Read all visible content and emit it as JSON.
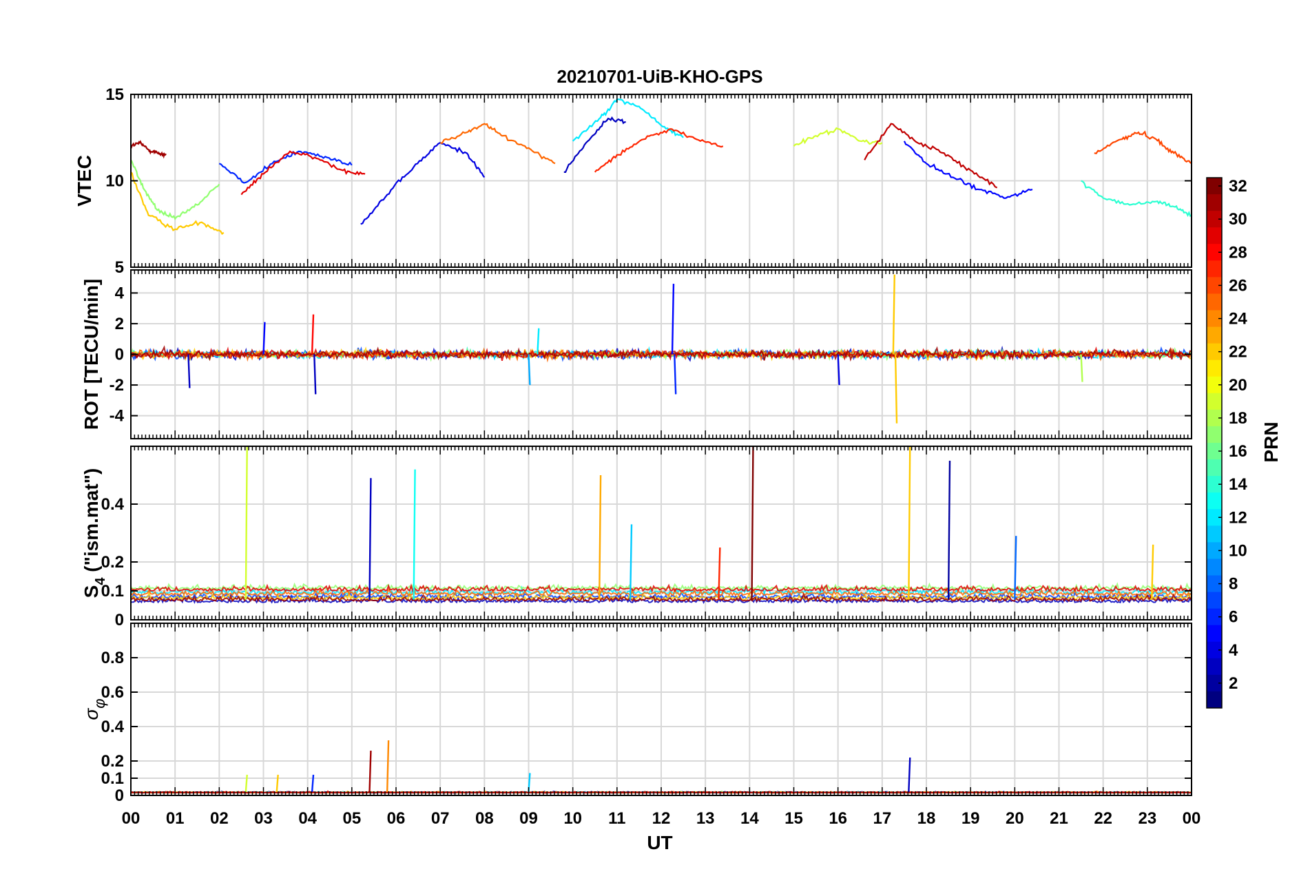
{
  "figure": {
    "title": "20210701-UiB-KHO-GPS",
    "xlabel": "UT",
    "x_tick_labels": [
      "00",
      "01",
      "02",
      "03",
      "04",
      "05",
      "06",
      "07",
      "08",
      "09",
      "10",
      "11",
      "12",
      "13",
      "14",
      "15",
      "16",
      "17",
      "18",
      "19",
      "20",
      "21",
      "22",
      "23",
      "00"
    ]
  },
  "colorbar": {
    "label": "PRN",
    "colormap": "jet",
    "range": [
      1,
      32
    ],
    "tick_labels": [
      "2",
      "4",
      "6",
      "8",
      "10",
      "12",
      "14",
      "16",
      "18",
      "20",
      "22",
      "24",
      "26",
      "28",
      "30",
      "32"
    ]
  },
  "chart_data": [
    {
      "type": "line",
      "panel": "vtec",
      "ylabel": "VTEC",
      "xlim": [
        0,
        24
      ],
      "ylim": [
        5,
        15
      ],
      "y_tick_labels": [
        "5",
        "10",
        "15"
      ],
      "grid": true,
      "series": [
        {
          "prn": 31,
          "points": [
            [
              0.0,
              12.0
            ],
            [
              0.2,
              12.2
            ],
            [
              0.4,
              11.8
            ],
            [
              0.6,
              11.6
            ],
            [
              0.8,
              11.5
            ]
          ]
        },
        {
          "prn": 17,
          "points": [
            [
              0.0,
              11.2
            ],
            [
              0.3,
              9.5
            ],
            [
              0.6,
              8.3
            ],
            [
              1.0,
              7.8
            ],
            [
              1.5,
              8.6
            ],
            [
              2.0,
              9.8
            ]
          ]
        },
        {
          "prn": 22,
          "points": [
            [
              0.0,
              10.5
            ],
            [
              0.4,
              8.0
            ],
            [
              1.0,
              7.2
            ],
            [
              1.6,
              7.6
            ],
            [
              2.1,
              7.0
            ]
          ]
        },
        {
          "prn": 6,
          "points": [
            [
              2.0,
              11.0
            ],
            [
              2.6,
              9.9
            ],
            [
              3.2,
              11.0
            ],
            [
              3.8,
              11.7
            ],
            [
              4.4,
              11.4
            ],
            [
              5.0,
              10.9
            ]
          ]
        },
        {
          "prn": 29,
          "points": [
            [
              2.5,
              9.2
            ],
            [
              3.0,
              10.4
            ],
            [
              3.6,
              11.7
            ],
            [
              4.2,
              11.3
            ],
            [
              4.8,
              10.6
            ],
            [
              5.3,
              10.4
            ]
          ]
        },
        {
          "prn": 4,
          "points": [
            [
              5.2,
              7.5
            ],
            [
              5.8,
              9.2
            ],
            [
              6.4,
              10.8
            ],
            [
              7.0,
              12.2
            ],
            [
              7.6,
              11.6
            ],
            [
              8.0,
              10.2
            ]
          ]
        },
        {
          "prn": 25,
          "points": [
            [
              7.0,
              12.2
            ],
            [
              7.6,
              12.8
            ],
            [
              8.0,
              13.3
            ],
            [
              8.4,
              12.6
            ],
            [
              9.0,
              11.9
            ],
            [
              9.6,
              11.0
            ]
          ]
        },
        {
          "prn": 12,
          "points": [
            [
              10.0,
              12.3
            ],
            [
              10.6,
              13.6
            ],
            [
              11.0,
              14.7
            ],
            [
              11.5,
              14.3
            ],
            [
              12.0,
              13.2
            ],
            [
              12.5,
              12.5
            ]
          ]
        },
        {
          "prn": 3,
          "points": [
            [
              9.8,
              10.5
            ],
            [
              10.3,
              12.2
            ],
            [
              10.8,
              13.6
            ],
            [
              11.2,
              13.4
            ]
          ]
        },
        {
          "prn": 27,
          "points": [
            [
              10.5,
              10.5
            ],
            [
              11.0,
              11.5
            ],
            [
              11.6,
              12.4
            ],
            [
              12.2,
              13.0
            ],
            [
              12.8,
              12.4
            ],
            [
              13.4,
              12.0
            ]
          ]
        },
        {
          "prn": 19,
          "points": [
            [
              15.0,
              12.0
            ],
            [
              15.5,
              12.6
            ],
            [
              16.0,
              13.0
            ],
            [
              16.5,
              12.3
            ],
            [
              17.0,
              12.2
            ]
          ]
        },
        {
          "prn": 30,
          "points": [
            [
              16.6,
              11.2
            ],
            [
              17.2,
              13.3
            ],
            [
              17.8,
              12.2
            ],
            [
              18.4,
              11.6
            ],
            [
              19.0,
              10.6
            ],
            [
              19.6,
              9.6
            ]
          ]
        },
        {
          "prn": 5,
          "points": [
            [
              17.5,
              12.3
            ],
            [
              18.0,
              11.0
            ],
            [
              18.6,
              10.2
            ],
            [
              19.2,
              9.5
            ],
            [
              19.8,
              9.0
            ],
            [
              20.4,
              9.5
            ]
          ]
        },
        {
          "prn": 26,
          "points": [
            [
              21.8,
              11.6
            ],
            [
              22.4,
              12.4
            ],
            [
              22.8,
              12.8
            ],
            [
              23.2,
              12.4
            ],
            [
              23.6,
              11.6
            ],
            [
              24.0,
              11.0
            ]
          ]
        },
        {
          "prn": 14,
          "points": [
            [
              21.5,
              10.0
            ],
            [
              22.0,
              9.0
            ],
            [
              22.6,
              8.6
            ],
            [
              23.2,
              8.8
            ],
            [
              23.6,
              8.5
            ],
            [
              24.0,
              8.0
            ]
          ]
        }
      ]
    },
    {
      "type": "line",
      "panel": "rot",
      "ylabel": "ROT [TECU/min]",
      "xlim": [
        0,
        24
      ],
      "ylim": [
        -5.5,
        5.5
      ],
      "y_tick_labels": [
        "-4",
        "-2",
        "0",
        "2",
        "4"
      ],
      "grid": true,
      "spikes": [
        {
          "prn": 28,
          "x": 4.1,
          "y": 2.6
        },
        {
          "prn": 3,
          "x": 4.15,
          "y": -2.6
        },
        {
          "prn": 5,
          "x": 12.25,
          "y": 4.6
        },
        {
          "prn": 6,
          "x": 12.3,
          "y": -2.6
        },
        {
          "prn": 22,
          "x": 17.25,
          "y": 5.2
        },
        {
          "prn": 22,
          "x": 17.3,
          "y": -4.5
        },
        {
          "prn": 4,
          "x": 16.0,
          "y": -2.0
        },
        {
          "prn": 10,
          "x": 9.0,
          "y": -2.0
        },
        {
          "prn": 12,
          "x": 9.2,
          "y": 1.7
        },
        {
          "prn": 3,
          "x": 1.3,
          "y": -2.2
        },
        {
          "prn": 5,
          "x": 3.0,
          "y": 2.1
        },
        {
          "prn": 18,
          "x": 21.5,
          "y": -1.8
        }
      ]
    },
    {
      "type": "line",
      "panel": "s4",
      "ylabel": "S_4 (\"ism.mat\")",
      "xlim": [
        0,
        24
      ],
      "ylim": [
        0,
        0.6
      ],
      "y_tick_labels": [
        "0",
        "0.1",
        "0.2",
        "0.4"
      ],
      "grid": true,
      "spikes": [
        {
          "prn": 19,
          "x": 2.6,
          "y": 0.6
        },
        {
          "prn": 3,
          "x": 5.4,
          "y": 0.49
        },
        {
          "prn": 13,
          "x": 6.4,
          "y": 0.52
        },
        {
          "prn": 23,
          "x": 10.6,
          "y": 0.5
        },
        {
          "prn": 32,
          "x": 14.05,
          "y": 0.6
        },
        {
          "prn": 22,
          "x": 17.6,
          "y": 0.6
        },
        {
          "prn": 2,
          "x": 18.5,
          "y": 0.55
        },
        {
          "prn": 11,
          "x": 11.3,
          "y": 0.33
        },
        {
          "prn": 8,
          "x": 20.0,
          "y": 0.29
        },
        {
          "prn": 27,
          "x": 13.3,
          "y": 0.25
        },
        {
          "prn": 22,
          "x": 23.1,
          "y": 0.26
        }
      ]
    },
    {
      "type": "line",
      "panel": "sigma_phi",
      "ylabel": "σ_φ",
      "xlim": [
        0,
        24
      ],
      "ylim": [
        0,
        1
      ],
      "y_tick_labels": [
        "0",
        "0.1",
        "0.2",
        "0.4",
        "0.6",
        "0.8"
      ],
      "grid": true,
      "spikes": [
        {
          "prn": 31,
          "x": 5.4,
          "y": 0.26
        },
        {
          "prn": 24,
          "x": 5.8,
          "y": 0.32
        },
        {
          "prn": 3,
          "x": 17.6,
          "y": 0.22
        },
        {
          "prn": 11,
          "x": 9.0,
          "y": 0.13
        },
        {
          "prn": 6,
          "x": 4.1,
          "y": 0.12
        },
        {
          "prn": 22,
          "x": 3.3,
          "y": 0.12
        },
        {
          "prn": 19,
          "x": 2.6,
          "y": 0.12
        }
      ]
    }
  ]
}
